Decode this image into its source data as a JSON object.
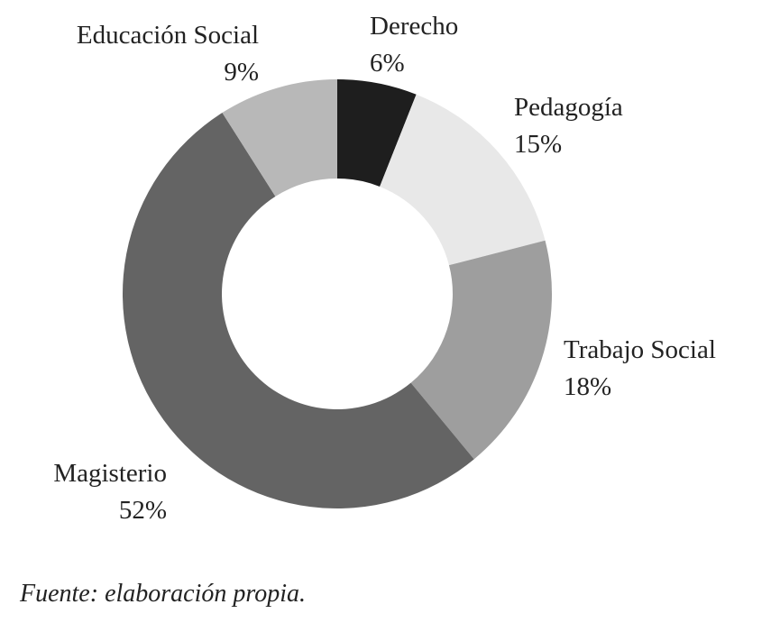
{
  "chart_data": {
    "type": "donut",
    "categories": [
      "Derecho",
      "Pedagogía",
      "Trabajo Social",
      "Magisterio",
      "Educación Social"
    ],
    "values": [
      6,
      15,
      18,
      52,
      9
    ],
    "value_labels": [
      "6%",
      "15%",
      "18%",
      "52%",
      "9%"
    ],
    "colors": [
      "#1e1e1e",
      "#e8e8e8",
      "#9e9e9e",
      "#646464",
      "#b8b8b8"
    ],
    "source": "Fuente: elaboración propia."
  }
}
